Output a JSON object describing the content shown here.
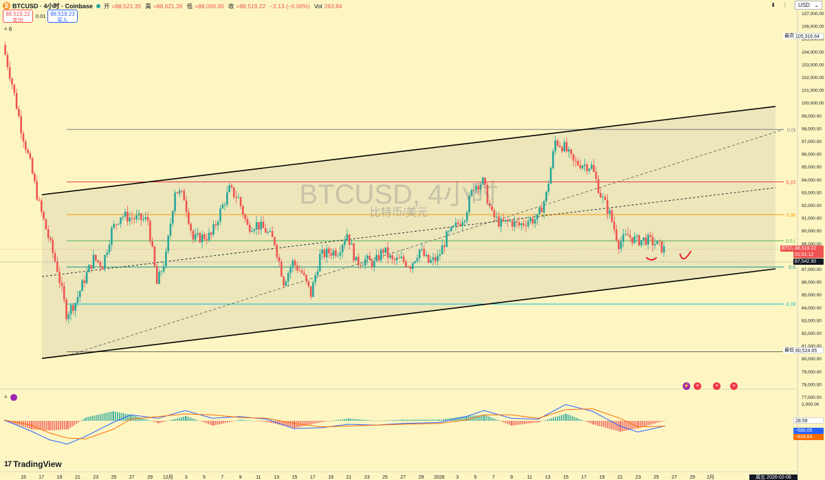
{
  "header": {
    "symbol_title": "BTCUSD · 4小时 · Coinbase",
    "open_label": "开",
    "open": "=88,521.35",
    "high_label": "高",
    "high": "=88,621.26",
    "low_label": "低",
    "low": "=88,000.00",
    "close_label": "收",
    "close": "=88,519.22",
    "change": "−2.13 (−0.00%)",
    "vol_label": "Vol",
    "vol": "263.84",
    "collapse": "˄ 6"
  },
  "order": {
    "sell_price": "88,519.22",
    "sell_label": "卖出",
    "spread": "0.01",
    "buy_price": "88,519.23",
    "buy_label": "买入"
  },
  "top_right": {
    "currency": "USD",
    "arrow_down": "⬇",
    "more": "⋮"
  },
  "watermark": {
    "title": "BTCUSD, 4小时",
    "subtitle": "比特币/美元"
  },
  "price_scale_labels": [
    "107,000.00",
    "106,000.00",
    "105,000.00",
    "104,000.00",
    "103,000.00",
    "102,000.00",
    "101,000.00",
    "100,000.00",
    "99,000.00",
    "98,000.00",
    "97,000.00",
    "96,000.00",
    "95,000.00",
    "94,000.00",
    "93,000.00",
    "92,000.00",
    "91,000.00",
    "90,000.00",
    "89,000.00",
    "88,000.00",
    "87,000.00",
    "86,000.00",
    "85,000.00",
    "84,000.00",
    "83,000.00",
    "82,000.00",
    "81,000.00",
    "80,000.00",
    "79,000.00",
    "78,000.00",
    "77,000.00"
  ],
  "macd_scale_labels": [
    "2,000.00",
    "0.00",
    "−2,000.00"
  ],
  "price_tags": {
    "high_label": "最高价",
    "high_value": "105,316.64",
    "low_label": "最低价",
    "low_value": "80,524.65",
    "last_symbol": "BTCUSD",
    "last_price": "88,519.22",
    "countdown": "01:01:12",
    "crosshair_price": "87,542.90"
  },
  "macd_tags": {
    "hist": "28.59",
    "macd": "−590.05",
    "signal": "−618.64"
  },
  "fib_labels": {
    "f0": "0 (9",
    "f236": "0.23",
    "f382": "0.38",
    "f5": "0.5 (",
    "f618": "0.6",
    "f786": "0.78"
  },
  "x_axis_labels": [
    "15",
    "17",
    "19",
    "21",
    "23",
    "25",
    "27",
    "29",
    "12月",
    "3",
    "5",
    "7",
    "9",
    "11",
    "13",
    "15",
    "17",
    "19",
    "21",
    "23",
    "25",
    "27",
    "29",
    "2026",
    "3",
    "5",
    "7",
    "9",
    "11",
    "13",
    "15",
    "17",
    "19",
    "21",
    "23",
    "25",
    "27",
    "29",
    "2月"
  ],
  "date_box": "周五 2026-02-06  16:00",
  "logo": {
    "mark": "17",
    "text": "TradingView"
  },
  "colors": {
    "background": "#fdf6c3",
    "up": "#26a69a",
    "down": "#ef5350",
    "channel": "#000000",
    "fib0": "#787b86",
    "fib236": "#f23645",
    "fib382": "#ff9800",
    "fib5": "#4caf50",
    "fib618": "#089981",
    "fib786": "#00bcd4",
    "macd_line": "#2962ff",
    "signal_line": "#ff6d00"
  },
  "chart_data": {
    "type": "candlestick",
    "symbol": "BTCUSD",
    "interval": "4小时",
    "exchange": "Coinbase",
    "ylim": [
      77000,
      107000
    ],
    "last_price": 88519.22,
    "session_high": 105316.64,
    "session_low": 80524.65,
    "fib_levels": [
      {
        "ratio": "0",
        "price": 97900
      },
      {
        "ratio": "0.236",
        "price": 93800
      },
      {
        "ratio": "0.382",
        "price": 91250
      },
      {
        "ratio": "0.5",
        "price": 89200
      },
      {
        "ratio": "0.618",
        "price": 87150
      },
      {
        "ratio": "0.786",
        "price": 84250
      }
    ],
    "regression_channel": {
      "upper_start": 92800,
      "upper_end": 99700,
      "lower_start": 80000,
      "lower_end": 87000
    },
    "price_path": [
      {
        "date": "2025-11-14",
        "price": 104500
      },
      {
        "date": "2025-11-15",
        "price": 101500
      },
      {
        "date": "2025-11-16",
        "price": 98000
      },
      {
        "date": "2025-11-17",
        "price": 95200
      },
      {
        "date": "2025-11-18",
        "price": 92000
      },
      {
        "date": "2025-11-19",
        "price": 89500
      },
      {
        "date": "2025-11-20",
        "price": 87000
      },
      {
        "date": "2025-11-21",
        "price": 83500
      },
      {
        "date": "2025-11-22",
        "price": 84400
      },
      {
        "date": "2025-11-23",
        "price": 86200
      },
      {
        "date": "2025-11-24",
        "price": 87800
      },
      {
        "date": "2025-11-25",
        "price": 87300
      },
      {
        "date": "2025-11-26",
        "price": 90000
      },
      {
        "date": "2025-11-27",
        "price": 91200
      },
      {
        "date": "2025-11-28",
        "price": 91000
      },
      {
        "date": "2025-11-29",
        "price": 90900
      },
      {
        "date": "2025-11-30",
        "price": 90800
      },
      {
        "date": "2025-12-01",
        "price": 85800
      },
      {
        "date": "2025-12-02",
        "price": 88000
      },
      {
        "date": "2025-12-03",
        "price": 93200
      },
      {
        "date": "2025-12-04",
        "price": 92600
      },
      {
        "date": "2025-12-05",
        "price": 89300
      },
      {
        "date": "2025-12-06",
        "price": 89500
      },
      {
        "date": "2025-12-07",
        "price": 89600
      },
      {
        "date": "2025-12-08",
        "price": 91500
      },
      {
        "date": "2025-12-09",
        "price": 93200
      },
      {
        "date": "2025-12-10",
        "price": 92500
      },
      {
        "date": "2025-12-11",
        "price": 90300
      },
      {
        "date": "2025-12-12",
        "price": 90500
      },
      {
        "date": "2025-12-13",
        "price": 90000
      },
      {
        "date": "2025-12-14",
        "price": 89100
      },
      {
        "date": "2025-12-15",
        "price": 86000
      },
      {
        "date": "2025-12-16",
        "price": 87500
      },
      {
        "date": "2025-12-17",
        "price": 86700
      },
      {
        "date": "2025-12-18",
        "price": 85000
      },
      {
        "date": "2025-12-19",
        "price": 88000
      },
      {
        "date": "2025-12-20",
        "price": 88300
      },
      {
        "date": "2025-12-21",
        "price": 88400
      },
      {
        "date": "2025-12-22",
        "price": 89800
      },
      {
        "date": "2025-12-23",
        "price": 87500
      },
      {
        "date": "2025-12-24",
        "price": 87700
      },
      {
        "date": "2025-12-25",
        "price": 87400
      },
      {
        "date": "2025-12-26",
        "price": 88500
      },
      {
        "date": "2025-12-27",
        "price": 87600
      },
      {
        "date": "2025-12-28",
        "price": 87700
      },
      {
        "date": "2025-12-29",
        "price": 87300
      },
      {
        "date": "2025-12-30",
        "price": 88500
      },
      {
        "date": "2025-12-31",
        "price": 87500
      },
      {
        "date": "2026-01-01",
        "price": 87800
      },
      {
        "date": "2026-01-02",
        "price": 89500
      },
      {
        "date": "2026-01-03",
        "price": 90300
      },
      {
        "date": "2026-01-04",
        "price": 91200
      },
      {
        "date": "2026-01-05",
        "price": 93500
      },
      {
        "date": "2026-01-06",
        "price": 93800
      },
      {
        "date": "2026-01-07",
        "price": 91200
      },
      {
        "date": "2026-01-08",
        "price": 90500
      },
      {
        "date": "2026-01-09",
        "price": 90700
      },
      {
        "date": "2026-01-10",
        "price": 90400
      },
      {
        "date": "2026-01-11",
        "price": 90800
      },
      {
        "date": "2026-01-12",
        "price": 90900
      },
      {
        "date": "2026-01-13",
        "price": 92800
      },
      {
        "date": "2026-01-14",
        "price": 97000
      },
      {
        "date": "2026-01-15",
        "price": 96500
      },
      {
        "date": "2026-01-16",
        "price": 95300
      },
      {
        "date": "2026-01-17",
        "price": 95200
      },
      {
        "date": "2026-01-18",
        "price": 95000
      },
      {
        "date": "2026-01-19",
        "price": 92800
      },
      {
        "date": "2026-01-20",
        "price": 91300
      },
      {
        "date": "2026-01-21",
        "price": 89000
      },
      {
        "date": "2026-01-22",
        "price": 89600
      },
      {
        "date": "2026-01-23",
        "price": 89200
      },
      {
        "date": "2026-01-24",
        "price": 89300
      },
      {
        "date": "2026-01-25",
        "price": 89000
      },
      {
        "date": "2026-01-26",
        "price": 88519
      }
    ],
    "macd": {
      "values": [
        {
          "date": "2025-11-14",
          "macd": 100,
          "signal": 100
        },
        {
          "date": "2025-11-17",
          "macd": -1200,
          "signal": -500
        },
        {
          "date": "2025-11-19",
          "macd": -2200,
          "signal": -1400
        },
        {
          "date": "2025-11-21",
          "macd": -2700,
          "signal": -2000
        },
        {
          "date": "2025-11-23",
          "macd": -1800,
          "signal": -2100
        },
        {
          "date": "2025-11-26",
          "macd": -200,
          "signal": -1000
        },
        {
          "date": "2025-11-28",
          "macd": 700,
          "signal": 200
        },
        {
          "date": "2025-12-01",
          "macd": 300,
          "signal": 500
        },
        {
          "date": "2025-12-04",
          "macd": 1200,
          "signal": 800
        },
        {
          "date": "2025-12-07",
          "macd": 300,
          "signal": 700
        },
        {
          "date": "2025-12-10",
          "macd": 500,
          "signal": 400
        },
        {
          "date": "2025-12-13",
          "macd": 200,
          "signal": 300
        },
        {
          "date": "2025-12-16",
          "macd": -900,
          "signal": -300
        },
        {
          "date": "2025-12-19",
          "macd": -800,
          "signal": -700
        },
        {
          "date": "2025-12-22",
          "macd": -400,
          "signal": -600
        },
        {
          "date": "2025-12-25",
          "macd": -500,
          "signal": -500
        },
        {
          "date": "2025-12-28",
          "macd": -300,
          "signal": -400
        },
        {
          "date": "2026-01-01",
          "macd": -200,
          "signal": -300
        },
        {
          "date": "2026-01-04",
          "macd": 500,
          "signal": 100
        },
        {
          "date": "2026-01-06",
          "macd": 1200,
          "signal": 700
        },
        {
          "date": "2026-01-09",
          "macd": 300,
          "signal": 700
        },
        {
          "date": "2026-01-12",
          "macd": 200,
          "signal": 300
        },
        {
          "date": "2026-01-15",
          "macd": 1900,
          "signal": 1300
        },
        {
          "date": "2026-01-18",
          "macd": 1100,
          "signal": 1400
        },
        {
          "date": "2026-01-21",
          "macd": -600,
          "signal": 300
        },
        {
          "date": "2026-01-23",
          "macd": -1300,
          "signal": -700
        },
        {
          "date": "2026-01-26",
          "macd": -590.05,
          "signal": -618.64
        }
      ],
      "last_hist": 28.59
    }
  }
}
